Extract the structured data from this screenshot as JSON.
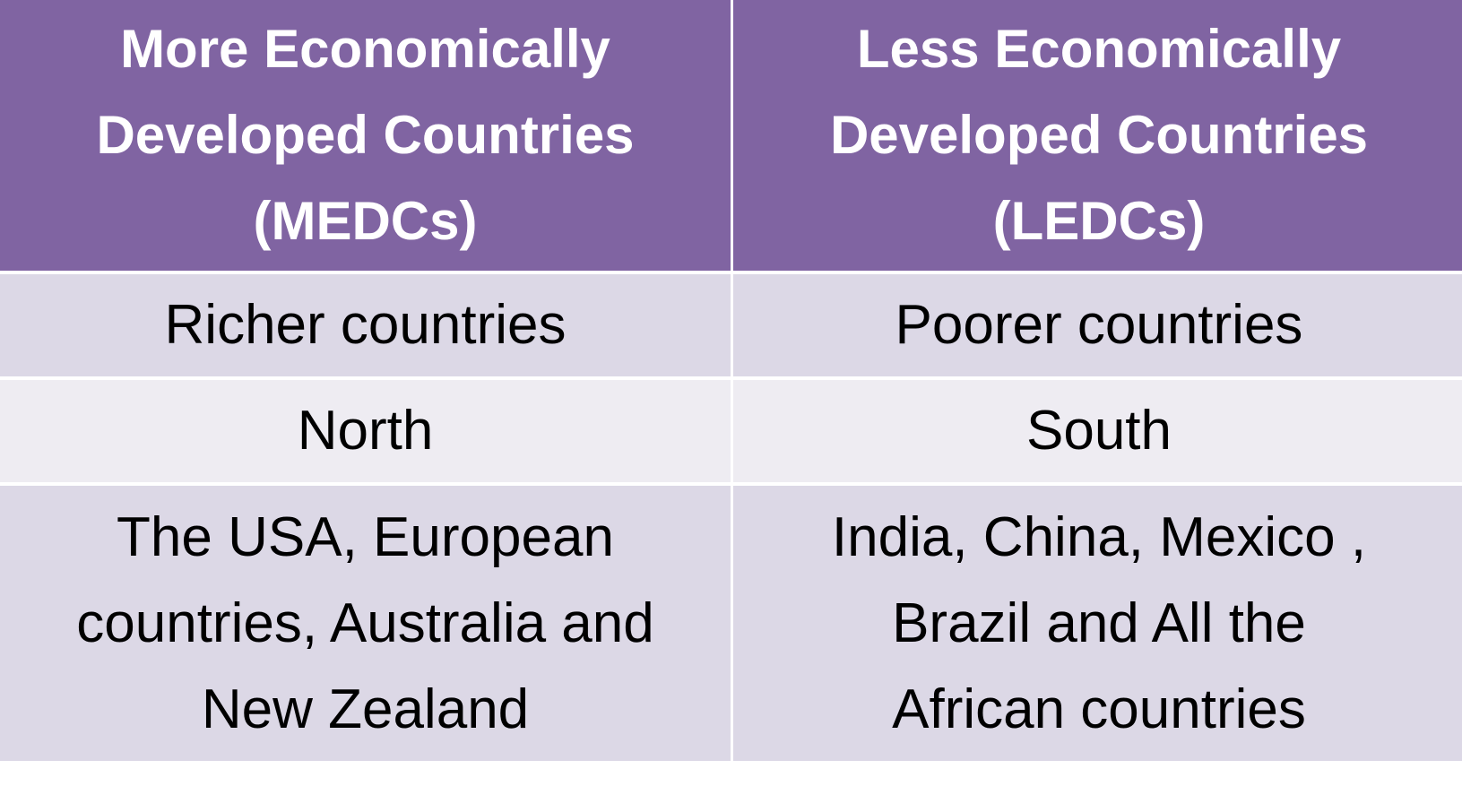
{
  "table": {
    "header": [
      [
        "More Economically",
        "Developed Countries",
        "(MEDCs)"
      ],
      [
        "Less Economically",
        "Developed Countries",
        "(LEDCs)"
      ]
    ],
    "rows": [
      [
        [
          "Richer countries"
        ],
        [
          "Poorer countries"
        ]
      ],
      [
        [
          "North"
        ],
        [
          "South"
        ]
      ],
      [
        [
          "The USA, European",
          "countries, Australia and",
          "New Zealand"
        ],
        [
          "India, China, Mexico ,",
          "Brazil and All the",
          "African countries"
        ]
      ]
    ]
  }
}
